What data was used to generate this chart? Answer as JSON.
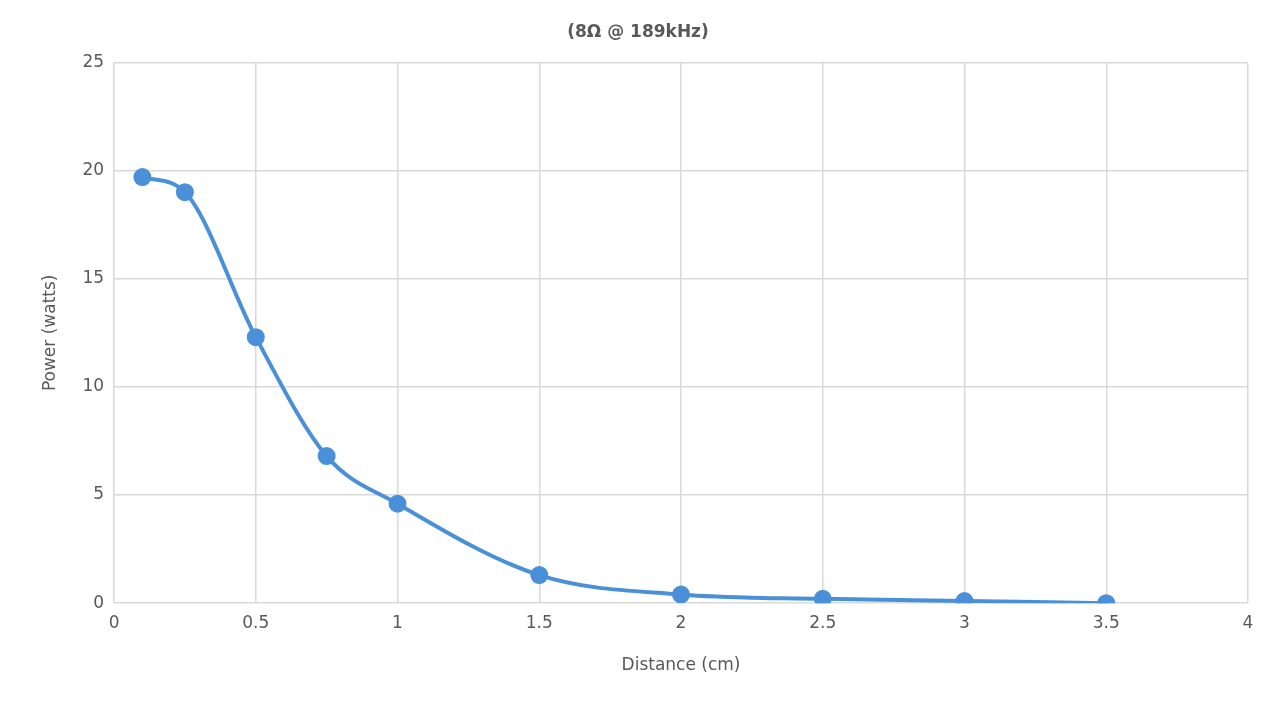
{
  "chart_data": {
    "type": "line",
    "title": "(8Ω @ 189kHz)",
    "xlabel": "Distance (cm)",
    "ylabel": "Power (watts)",
    "x": [
      0.1,
      0.25,
      0.5,
      0.75,
      1,
      1.5,
      2,
      2.5,
      3,
      3.5
    ],
    "series": [
      {
        "color": "#4a90d9",
        "values": [
          19.7,
          19.0,
          12.3,
          6.8,
          4.6,
          1.3,
          0.4,
          0.2,
          0.1,
          0
        ]
      }
    ],
    "xlim": [
      0,
      4
    ],
    "xticks": [
      0,
      0.5,
      1,
      1.5,
      2,
      2.5,
      3,
      3.5,
      4
    ],
    "ylim": [
      0,
      25
    ],
    "yticks": [
      0,
      5,
      10,
      15,
      20,
      25
    ],
    "grid": true,
    "marker": "circle",
    "line_style": "solid"
  }
}
